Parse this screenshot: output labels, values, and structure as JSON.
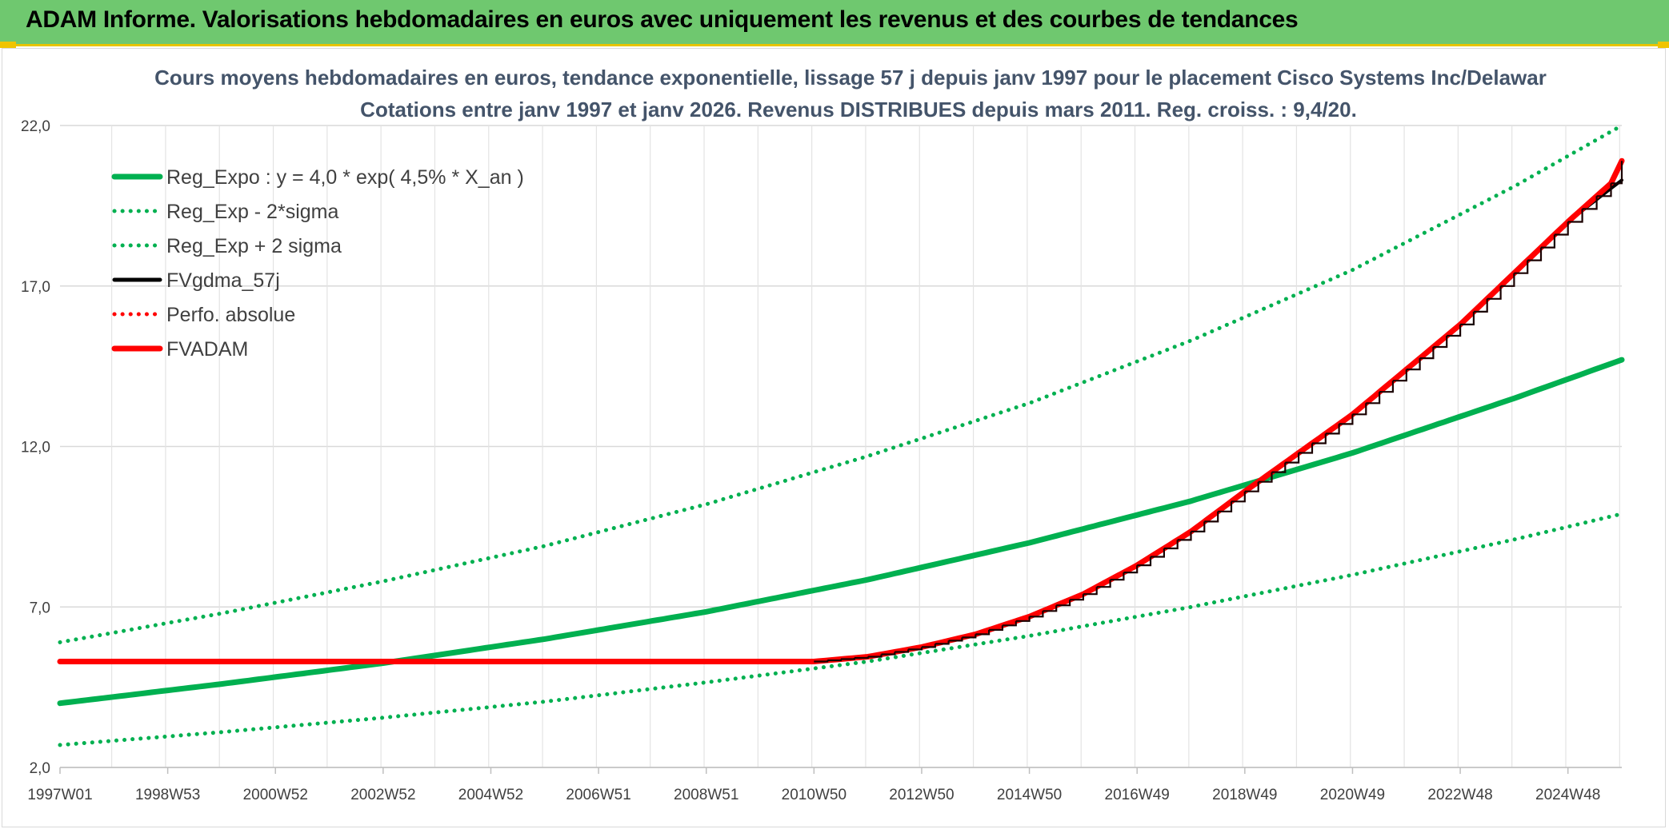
{
  "header": {
    "title": "ADAM Informe. Valorisations hebdomadaires en euros avec uniquement les revenus et des courbes de tendances"
  },
  "colors": {
    "header_bg": "#6fc86f",
    "accent_yellow": "#f0c400",
    "green_series": "#00b050",
    "red_series": "#ff0000",
    "black_series": "#000000",
    "grid": "#d9d9d9",
    "title_text": "#44546a"
  },
  "chart_data": {
    "type": "line",
    "title": "Cours moyens hebdomadaires en euros, tendance exponentielle, lissage 57 j depuis janv 1997 pour le placement Cisco Systems Inc/Delawar",
    "subtitle": "Cotations entre janv 1997 et janv 2026. Revenus DISTRIBUES depuis mars 2011. Reg. croiss. : 9,4/20.",
    "xlabel": "",
    "ylabel": "",
    "ylim": [
      2.0,
      22.0
    ],
    "yticks": [
      "2,0",
      "7,0",
      "12,0",
      "17,0",
      "22,0"
    ],
    "xlim": [
      1997.0,
      2026.0
    ],
    "xticks": [
      "1997W01",
      "1998W53",
      "2000W52",
      "2002W52",
      "2004W52",
      "2006W51",
      "2008W51",
      "2010W50",
      "2012W50",
      "2014W50",
      "2016W49",
      "2018W49",
      "2020W49",
      "2022W48",
      "2024W48"
    ],
    "grid": "vertical and horizontal gridlines",
    "legend_position": "top-left",
    "series": [
      {
        "name": "Reg_Expo : y = 4,0 * exp( 4,5% *  X_an )",
        "style": "solid-thick",
        "color": "#00b050",
        "x": [
          1997,
          2000,
          2003,
          2006,
          2009,
          2012,
          2015,
          2018,
          2021,
          2024,
          2026
        ],
        "values": [
          4.0,
          4.6,
          5.25,
          6.0,
          6.85,
          7.85,
          9.0,
          10.3,
          11.8,
          13.5,
          14.7
        ]
      },
      {
        "name": "Reg_Exp - 2*sigma",
        "style": "dotted",
        "color": "#00b050",
        "x": [
          1997,
          2000,
          2003,
          2006,
          2009,
          2012,
          2015,
          2018,
          2021,
          2024,
          2026
        ],
        "values": [
          2.7,
          3.1,
          3.55,
          4.05,
          4.65,
          5.3,
          6.1,
          7.0,
          8.0,
          9.1,
          9.9
        ]
      },
      {
        "name": "Reg_Exp + 2 sigma",
        "style": "dotted",
        "color": "#00b050",
        "x": [
          1997,
          2000,
          2003,
          2006,
          2009,
          2012,
          2015,
          2018,
          2021,
          2024,
          2026
        ],
        "values": [
          5.9,
          6.8,
          7.8,
          8.9,
          10.2,
          11.7,
          13.35,
          15.3,
          17.5,
          20.1,
          22.0
        ]
      },
      {
        "name": "FVgdma_57j",
        "style": "solid",
        "color": "#000000",
        "x": [
          2011.0,
          2012.0,
          2013.0,
          2014.0,
          2015.0,
          2016.0,
          2017.0,
          2018.0,
          2019.0,
          2020.0,
          2021.0,
          2022.0,
          2023.0,
          2024.0,
          2025.0,
          2026.0
        ],
        "values": [
          5.3,
          5.45,
          5.75,
          6.15,
          6.7,
          7.4,
          8.3,
          9.35,
          10.6,
          11.8,
          13.0,
          14.4,
          15.8,
          17.4,
          19.0,
          20.3
        ]
      },
      {
        "name": "Perfo. absolue",
        "style": "dotted",
        "color": "#ff0000",
        "x": [],
        "values": []
      },
      {
        "name": "FVADAM",
        "style": "solid-thick",
        "color": "#ff0000",
        "x": [
          1997.0,
          2000.0,
          2005.0,
          2010.0,
          2011.0,
          2012.0,
          2013.0,
          2014.0,
          2015.0,
          2016.0,
          2017.0,
          2018.0,
          2019.0,
          2020.0,
          2021.0,
          2022.0,
          2023.0,
          2024.0,
          2025.0,
          2025.8,
          2026.0
        ],
        "values": [
          5.3,
          5.3,
          5.3,
          5.3,
          5.3,
          5.45,
          5.75,
          6.15,
          6.7,
          7.4,
          8.3,
          9.35,
          10.6,
          11.8,
          13.0,
          14.4,
          15.8,
          17.4,
          19.0,
          20.2,
          20.9
        ]
      }
    ]
  }
}
